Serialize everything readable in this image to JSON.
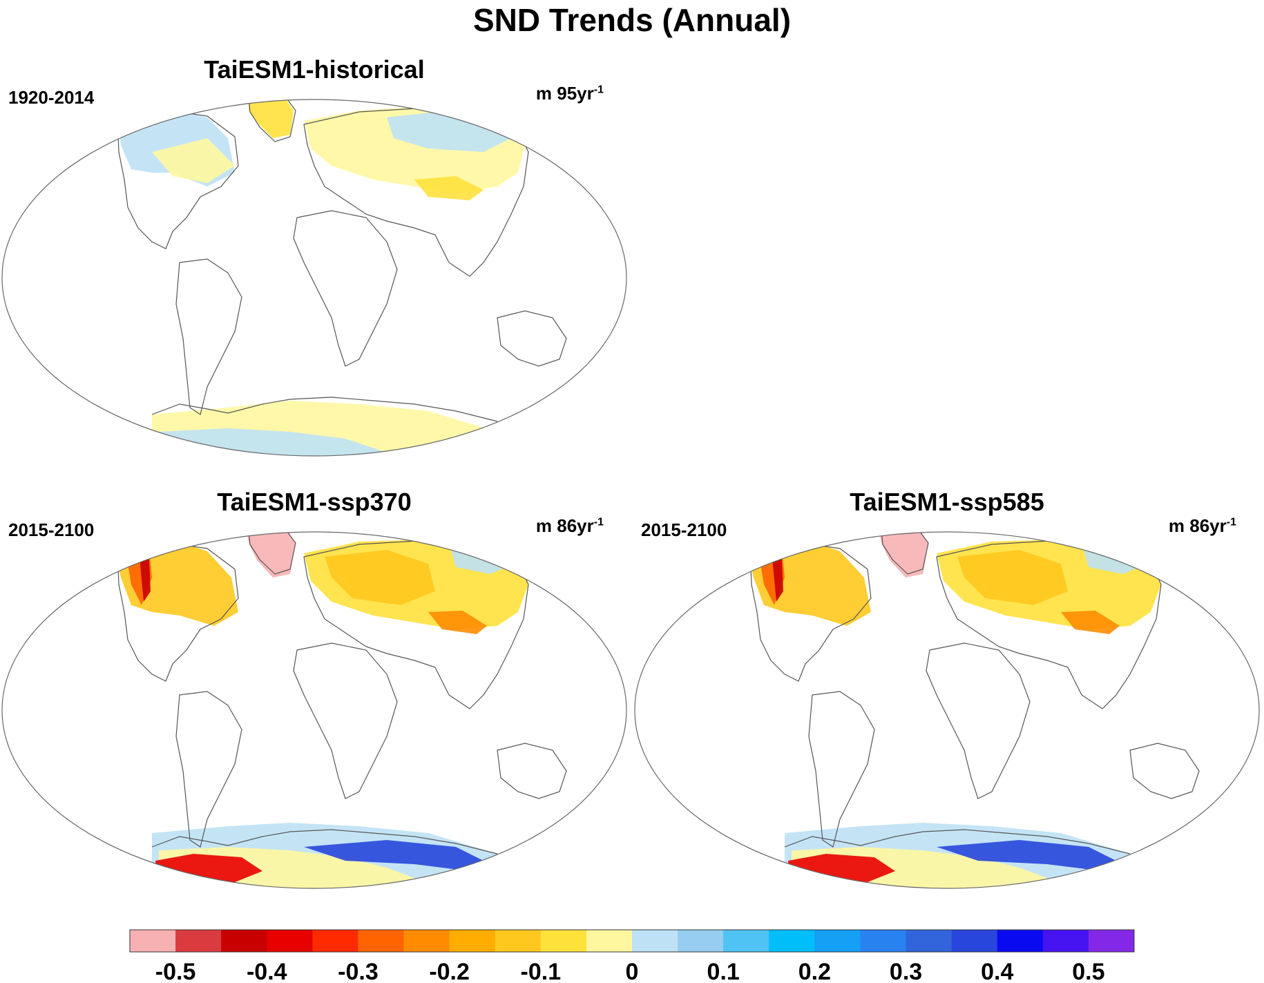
{
  "title": "SND Trends (Annual)",
  "panels": [
    {
      "title": "TaiESM1-historical",
      "period": "1920-2014",
      "units": "m 95yr",
      "units_exp": "-1",
      "scenario": "historical"
    },
    {
      "title": "TaiESM1-ssp370",
      "period": "2015-2100",
      "units": "m 86yr",
      "units_exp": "-1",
      "scenario": "ssp370"
    },
    {
      "title": "TaiESM1-ssp585",
      "period": "2015-2100",
      "units": "m 86yr",
      "units_exp": "-1",
      "scenario": "ssp585"
    }
  ],
  "colorbar": {
    "colors": [
      "#f7b1b2",
      "#d93b3f",
      "#c80000",
      "#e80000",
      "#ff2a00",
      "#ff6400",
      "#ff8c00",
      "#ffad00",
      "#ffc81e",
      "#ffe13c",
      "#fff7a0",
      "#bee1f5",
      "#96cdf0",
      "#50c3f5",
      "#00bef9",
      "#14a0f5",
      "#2882f0",
      "#3264dc",
      "#2846dc",
      "#0a0af0",
      "#4614f0",
      "#8228e6"
    ],
    "tick_labels": [
      "-0.5",
      "-0.4",
      "-0.3",
      "-0.2",
      "-0.1",
      "0",
      "0.1",
      "0.2",
      "0.3",
      "0.4",
      "0.5"
    ]
  }
}
